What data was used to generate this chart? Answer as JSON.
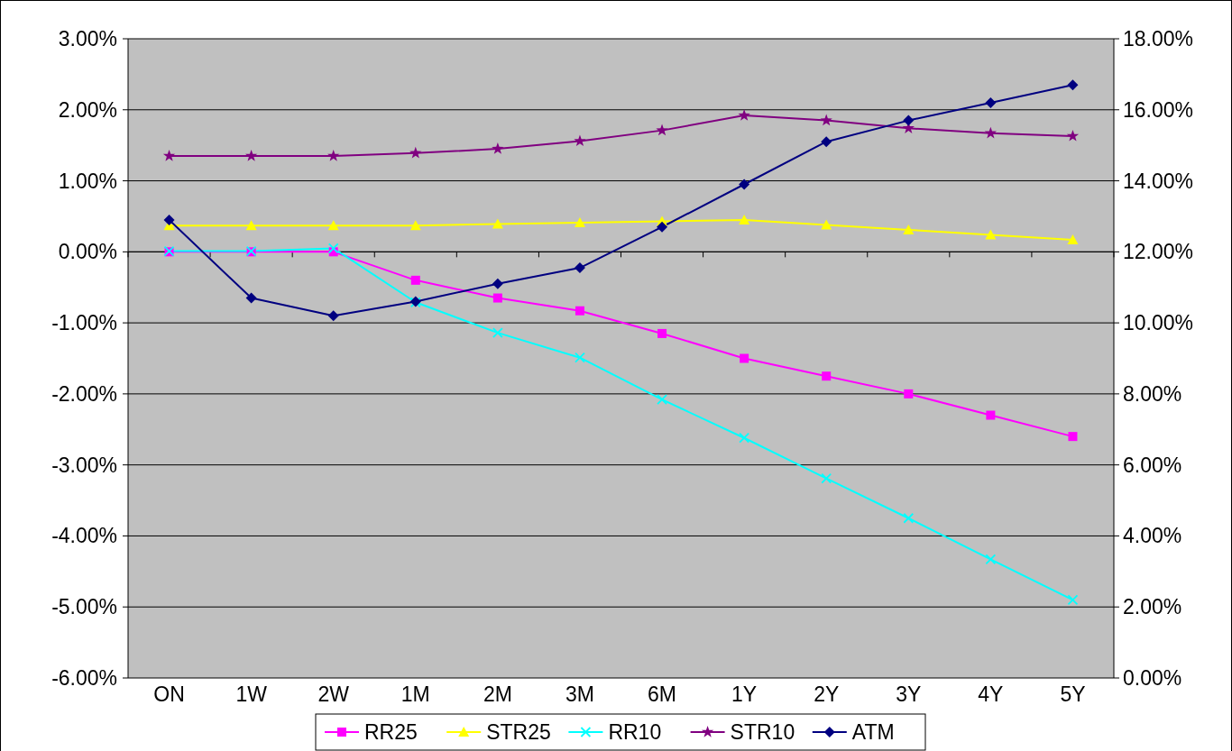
{
  "chart_data": {
    "type": "line",
    "categories": [
      "ON",
      "1W",
      "2W",
      "1M",
      "2M",
      "3M",
      "6M",
      "1Y",
      "2Y",
      "3Y",
      "4Y",
      "5Y"
    ],
    "ylim": [
      -6,
      3
    ],
    "yticks": [
      {
        "value": -6,
        "label": "-6.00%"
      },
      {
        "value": -5,
        "label": "-5.00%"
      },
      {
        "value": -4,
        "label": "-4.00%"
      },
      {
        "value": -3,
        "label": "-3.00%"
      },
      {
        "value": -2,
        "label": "-2.00%"
      },
      {
        "value": -1,
        "label": "-1.00%"
      },
      {
        "value": 0,
        "label": "0.00%"
      },
      {
        "value": 1,
        "label": "1.00%"
      },
      {
        "value": 2,
        "label": "2.00%"
      },
      {
        "value": 3,
        "label": "3.00%"
      }
    ],
    "y2lim": [
      0,
      18
    ],
    "y2ticks": [
      {
        "value": 0,
        "label": "0.00%"
      },
      {
        "value": 2,
        "label": "2.00%"
      },
      {
        "value": 4,
        "label": "4.00%"
      },
      {
        "value": 6,
        "label": "6.00%"
      },
      {
        "value": 8,
        "label": "8.00%"
      },
      {
        "value": 10,
        "label": "10.00%"
      },
      {
        "value": 12,
        "label": "12.00%"
      },
      {
        "value": 14,
        "label": "14.00%"
      },
      {
        "value": 16,
        "label": "16.00%"
      },
      {
        "value": 18,
        "label": "18.00%"
      }
    ],
    "grid": "y",
    "legend": "bottom",
    "series": [
      {
        "name": "RR25",
        "color": "#ff00ff",
        "marker": "square",
        "values": [
          0,
          0,
          0,
          -0.4,
          -0.65,
          -0.83,
          -1.15,
          -1.5,
          -1.75,
          -2.0,
          -2.3,
          -2.6
        ]
      },
      {
        "name": "STR25",
        "color": "#ffff00",
        "marker": "triangle",
        "values": [
          0.37,
          0.37,
          0.37,
          0.37,
          0.39,
          0.41,
          0.43,
          0.45,
          0.38,
          0.31,
          0.24,
          0.17
        ]
      },
      {
        "name": "RR10",
        "color": "#00ffff",
        "marker": "cross",
        "values": [
          0.01,
          0.01,
          0.05,
          -0.71,
          -1.14,
          -1.49,
          -2.08,
          -2.62,
          -3.19,
          -3.75,
          -4.33,
          -4.9
        ]
      },
      {
        "name": "STR10",
        "color": "#800080",
        "marker": "star",
        "values": [
          1.35,
          1.35,
          1.35,
          1.39,
          1.45,
          1.56,
          1.71,
          1.92,
          1.85,
          1.74,
          1.67,
          1.63
        ]
      },
      {
        "name": "ATM",
        "color": "#000080",
        "marker": "diamond",
        "axis": "y2",
        "values": [
          12.9,
          10.7,
          10.2,
          10.6,
          11.1,
          11.55,
          12.7,
          13.9,
          15.1,
          15.7,
          16.2,
          16.7
        ]
      }
    ]
  }
}
